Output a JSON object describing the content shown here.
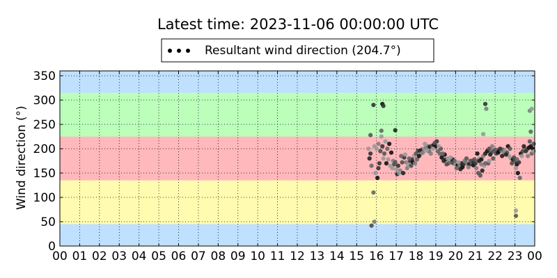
{
  "chart_data": {
    "type": "scatter",
    "title": "Latest time: 2023-11-06 00:00:00 UTC",
    "legend": {
      "label": "Resultant wind direction (204.7°)",
      "position": "top-center"
    },
    "xlabel": "",
    "ylabel": "Wind direction (°)",
    "xlim": [
      0,
      24
    ],
    "ylim": [
      0,
      360
    ],
    "x_tick_labels": [
      "00",
      "01",
      "02",
      "03",
      "04",
      "05",
      "06",
      "07",
      "08",
      "09",
      "10",
      "11",
      "12",
      "13",
      "14",
      "15",
      "16",
      "17",
      "18",
      "19",
      "20",
      "21",
      "22",
      "23",
      "00"
    ],
    "y_ticks": [
      0,
      50,
      100,
      150,
      200,
      250,
      300,
      350
    ],
    "grid": true,
    "bands": [
      {
        "from": 0,
        "to": 45,
        "color": "#bfe0ff"
      },
      {
        "from": 45,
        "to": 135,
        "color": "#fffcb0"
      },
      {
        "from": 135,
        "to": 225,
        "color": "#ffb8bc"
      },
      {
        "from": 225,
        "to": 315,
        "color": "#bbffbb"
      },
      {
        "from": 315,
        "to": 360,
        "color": "#bfe0ff"
      }
    ],
    "series": [
      {
        "marker_color": "#000000",
        "points": [
          [
            15.75,
            42
          ],
          [
            15.85,
            110
          ],
          [
            15.9,
            50
          ],
          [
            15.85,
            290
          ],
          [
            16.3,
            292
          ],
          [
            16.35,
            288
          ],
          [
            16.25,
            237
          ],
          [
            15.7,
            228
          ],
          [
            16.95,
            238
          ],
          [
            21.5,
            292
          ],
          [
            21.55,
            282
          ],
          [
            21.4,
            230
          ],
          [
            23.05,
            73
          ],
          [
            23.05,
            62
          ],
          [
            23.75,
            278
          ],
          [
            23.85,
            282
          ],
          [
            23.8,
            235
          ],
          [
            15.6,
            200
          ],
          [
            15.65,
            180
          ],
          [
            15.95,
            150
          ],
          [
            16.05,
            140
          ],
          [
            16.1,
            160
          ],
          [
            15.75,
            165
          ],
          [
            15.7,
            190
          ],
          [
            15.9,
            205
          ],
          [
            16.0,
            200
          ],
          [
            16.1,
            210
          ],
          [
            16.2,
            195
          ],
          [
            16.3,
            205
          ],
          [
            16.4,
            190
          ],
          [
            16.5,
            170
          ],
          [
            16.6,
            178
          ],
          [
            16.7,
            165
          ],
          [
            16.8,
            160
          ],
          [
            16.9,
            168
          ],
          [
            17.0,
            158
          ],
          [
            17.1,
            165
          ],
          [
            17.2,
            155
          ],
          [
            17.3,
            172
          ],
          [
            17.4,
            182
          ],
          [
            17.5,
            172
          ],
          [
            17.6,
            168
          ],
          [
            17.7,
            175
          ],
          [
            17.8,
            178
          ],
          [
            17.9,
            185
          ],
          [
            18.0,
            190
          ],
          [
            18.1,
            196
          ],
          [
            18.2,
            195
          ],
          [
            18.3,
            198
          ],
          [
            18.4,
            200
          ],
          [
            18.5,
            202
          ],
          [
            18.6,
            205
          ],
          [
            18.7,
            204
          ],
          [
            18.8,
            206
          ],
          [
            18.9,
            208
          ],
          [
            19.0,
            205
          ],
          [
            19.1,
            195
          ],
          [
            19.2,
            190
          ],
          [
            19.3,
            182
          ],
          [
            19.4,
            175
          ],
          [
            19.5,
            178
          ],
          [
            19.6,
            180
          ],
          [
            19.7,
            175
          ],
          [
            19.8,
            172
          ],
          [
            19.9,
            170
          ],
          [
            20.0,
            168
          ],
          [
            20.1,
            166
          ],
          [
            20.2,
            165
          ],
          [
            20.3,
            170
          ],
          [
            20.4,
            168
          ],
          [
            20.5,
            172
          ],
          [
            20.6,
            169
          ],
          [
            20.7,
            168
          ],
          [
            20.8,
            170
          ],
          [
            20.9,
            166
          ],
          [
            21.0,
            170
          ],
          [
            21.1,
            175
          ],
          [
            21.2,
            180
          ],
          [
            21.3,
            178
          ],
          [
            21.4,
            185
          ],
          [
            21.5,
            190
          ],
          [
            21.6,
            195
          ],
          [
            21.7,
            200
          ],
          [
            21.8,
            192
          ],
          [
            21.9,
            195
          ],
          [
            22.0,
            198
          ],
          [
            22.1,
            197
          ],
          [
            22.2,
            195
          ],
          [
            22.3,
            196
          ],
          [
            22.4,
            198
          ],
          [
            22.5,
            195
          ],
          [
            22.6,
            192
          ],
          [
            22.7,
            185
          ],
          [
            22.8,
            180
          ],
          [
            22.9,
            178
          ],
          [
            23.0,
            175
          ],
          [
            23.1,
            168
          ],
          [
            23.2,
            172
          ],
          [
            23.3,
            190
          ],
          [
            23.4,
            195
          ],
          [
            23.5,
            200
          ],
          [
            23.6,
            198
          ],
          [
            23.7,
            202
          ],
          [
            23.8,
            205
          ],
          [
            23.9,
            200
          ],
          [
            23.95,
            210
          ],
          [
            17.05,
            148
          ],
          [
            17.15,
            150
          ],
          [
            17.55,
            160
          ],
          [
            17.45,
            188
          ],
          [
            16.45,
            215
          ],
          [
            16.55,
            200
          ],
          [
            16.75,
            192
          ],
          [
            16.85,
            175
          ],
          [
            17.25,
            185
          ],
          [
            17.65,
            180
          ],
          [
            17.85,
            172
          ],
          [
            18.05,
            178
          ],
          [
            18.25,
            190
          ],
          [
            18.45,
            210
          ],
          [
            18.65,
            195
          ],
          [
            18.85,
            200
          ],
          [
            19.05,
            215
          ],
          [
            19.25,
            200
          ],
          [
            19.45,
            188
          ],
          [
            19.65,
            170
          ],
          [
            19.85,
            178
          ],
          [
            20.05,
            160
          ],
          [
            20.25,
            158
          ],
          [
            20.45,
            175
          ],
          [
            20.65,
            162
          ],
          [
            20.85,
            175
          ],
          [
            21.05,
            160
          ],
          [
            21.15,
            150
          ],
          [
            21.25,
            145
          ],
          [
            21.35,
            155
          ],
          [
            21.45,
            165
          ],
          [
            21.65,
            170
          ],
          [
            21.75,
            188
          ],
          [
            21.85,
            205
          ],
          [
            22.05,
            190
          ],
          [
            22.25,
            200
          ],
          [
            22.45,
            190
          ],
          [
            22.65,
            205
          ],
          [
            22.85,
            170
          ],
          [
            23.05,
            160
          ],
          [
            23.15,
            150
          ],
          [
            23.25,
            140
          ],
          [
            23.35,
            185
          ],
          [
            23.45,
            205
          ],
          [
            23.55,
            195
          ],
          [
            23.65,
            185
          ],
          [
            23.75,
            215
          ],
          [
            23.85,
            190
          ],
          [
            23.95,
            195
          ],
          [
            16.15,
            170
          ],
          [
            16.25,
            225
          ],
          [
            16.35,
            180
          ],
          [
            16.65,
            210
          ],
          [
            16.95,
            172
          ],
          [
            17.35,
            150
          ],
          [
            17.75,
            165
          ],
          [
            17.95,
            170
          ],
          [
            18.15,
            185
          ],
          [
            18.35,
            192
          ],
          [
            18.55,
            196
          ],
          [
            18.75,
            190
          ],
          [
            18.95,
            212
          ],
          [
            19.15,
            205
          ],
          [
            19.35,
            190
          ],
          [
            19.55,
            168
          ],
          [
            19.75,
            182
          ],
          [
            19.95,
            175
          ],
          [
            20.15,
            172
          ],
          [
            20.35,
            162
          ],
          [
            20.55,
            180
          ],
          [
            20.75,
            175
          ],
          [
            20.95,
            178
          ],
          [
            21.1,
            190
          ],
          [
            21.2,
            175
          ],
          [
            21.3,
            168
          ],
          [
            21.5,
            170
          ],
          [
            21.7,
            175
          ],
          [
            21.9,
            180
          ],
          [
            22.15,
            192
          ],
          [
            22.35,
            185
          ],
          [
            22.55,
            188
          ],
          [
            22.75,
            200
          ],
          [
            22.95,
            182
          ],
          [
            23.1,
            178
          ]
        ]
      }
    ]
  }
}
